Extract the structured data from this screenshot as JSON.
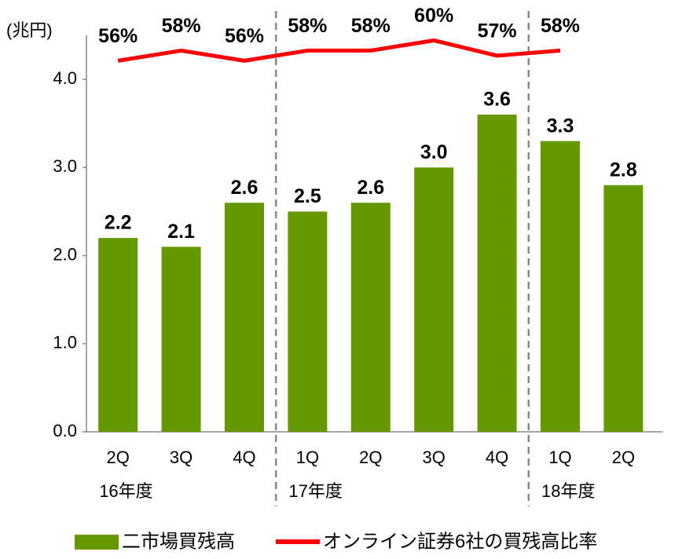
{
  "chart_data": {
    "type": "bar",
    "y_axis_label": "(兆円)",
    "categories": [
      "2Q",
      "3Q",
      "4Q",
      "1Q",
      "2Q",
      "3Q",
      "4Q",
      "1Q",
      "2Q"
    ],
    "category_groups": [
      "16年度",
      null,
      null,
      "17年度",
      null,
      null,
      null,
      "18年度",
      null
    ],
    "ylim": [
      0,
      4.5
    ],
    "yticks": [
      {
        "value": 0,
        "label": "0.0"
      },
      {
        "value": 1,
        "label": "1.0"
      },
      {
        "value": 2,
        "label": "2.0"
      },
      {
        "value": 3,
        "label": "3.0"
      },
      {
        "value": 4,
        "label": "4.0"
      }
    ],
    "y2lim": [
      -17,
      61
    ],
    "series": [
      {
        "name": "二市場買残高",
        "type": "bar",
        "color": "#669900",
        "values": [
          2.2,
          2.1,
          2.6,
          2.5,
          2.6,
          3.0,
          3.6,
          3.3,
          2.8
        ],
        "value_labels": [
          "2.2",
          "2.1",
          "2.6",
          "2.5",
          "2.6",
          "3.0",
          "3.6",
          "3.3",
          "2.8"
        ]
      },
      {
        "name": "オンライン証券6社の買残高比率",
        "type": "line",
        "axis": "y2",
        "color": "#ff0000",
        "values": [
          56,
          58,
          56,
          58,
          58,
          60,
          57,
          58,
          null
        ],
        "value_labels": [
          "56%",
          "58%",
          "56%",
          "58%",
          "58%",
          "60%",
          "57%",
          "58%",
          null
        ]
      }
    ]
  }
}
